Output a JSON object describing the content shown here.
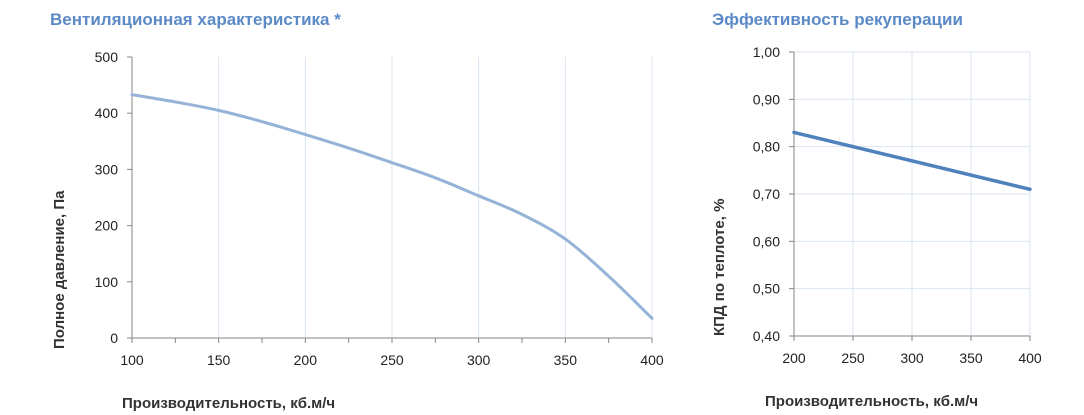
{
  "colors": {
    "title": "#5b8ac6",
    "grid": "#d8e4f0",
    "axis": "#868686",
    "series_left": "#95b3d7",
    "series_right": "#4f81bd"
  },
  "chart_data": [
    {
      "type": "line",
      "title": "Вентиляционная характеристика *",
      "xlabel": "Производительность, кб.м/ч",
      "ylabel": "Полное  давление, Па",
      "xlim": [
        100,
        400
      ],
      "ylim": [
        0,
        500
      ],
      "x_ticks": [
        100,
        150,
        200,
        250,
        300,
        350,
        400
      ],
      "x_tick_labels": [
        "100",
        "150",
        "200",
        "250",
        "300",
        "350",
        "400"
      ],
      "y_ticks": [
        0,
        100,
        200,
        300,
        400,
        500
      ],
      "y_tick_labels": [
        "0",
        "100",
        "200",
        "300",
        "400",
        "500"
      ],
      "x_minor_step": 25,
      "grid": true,
      "series": [
        {
          "x": [
            100,
            125,
            150,
            175,
            200,
            225,
            250,
            275,
            300,
            325,
            350,
            375,
            400
          ],
          "values": [
            433,
            420,
            405,
            385,
            362,
            338,
            312,
            285,
            253,
            220,
            176,
            110,
            35
          ]
        }
      ]
    },
    {
      "type": "line",
      "title": "Эффективность рекуперации",
      "xlabel": "Производительность, кб.м/ч",
      "ylabel": "КПД по теплоте, %",
      "xlim": [
        200,
        400
      ],
      "ylim": [
        0.4,
        1.0
      ],
      "x_ticks": [
        200,
        250,
        300,
        350,
        400
      ],
      "x_tick_labels": [
        "200",
        "250",
        "300",
        "350",
        "400"
      ],
      "y_ticks": [
        0.4,
        0.5,
        0.6,
        0.7,
        0.8,
        0.9,
        1.0
      ],
      "y_tick_labels": [
        "0,40",
        "0,50",
        "0,60",
        "0,70",
        "0,80",
        "0,90",
        "1,00"
      ],
      "grid": true,
      "series": [
        {
          "x": [
            200,
            400
          ],
          "values": [
            0.83,
            0.71
          ]
        }
      ]
    }
  ]
}
